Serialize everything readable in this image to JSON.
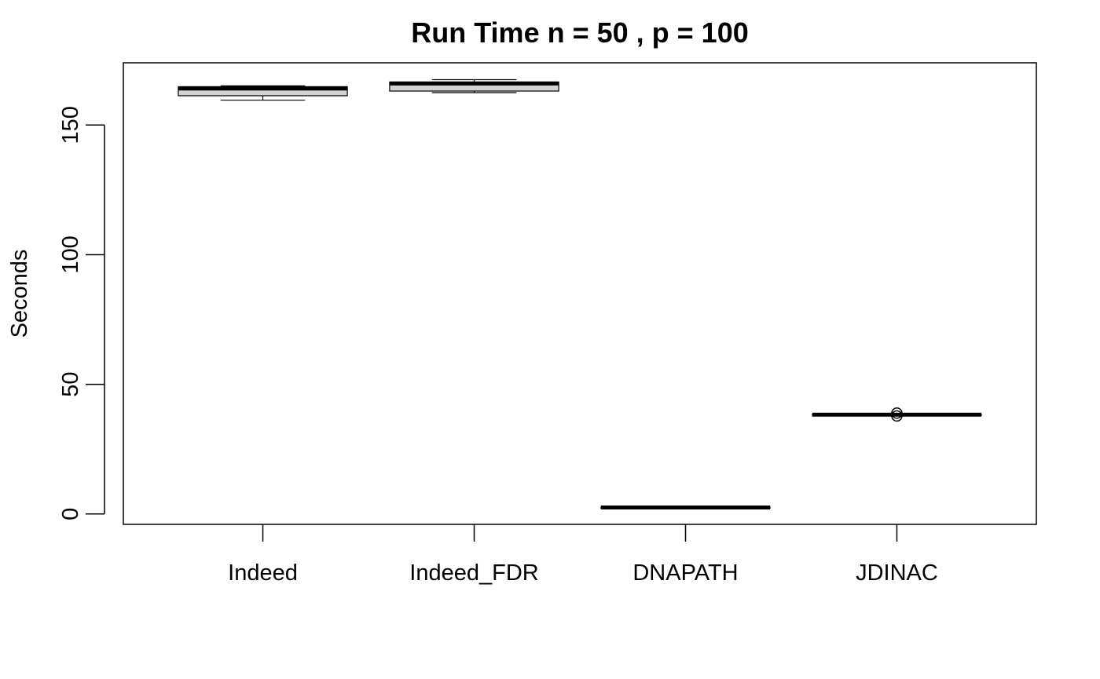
{
  "chart_data": {
    "type": "boxplot",
    "title": "Run Time n = 50 , p = 100",
    "xlabel": "",
    "ylabel": "Seconds",
    "ylim": [
      -4,
      174
    ],
    "yticks": [
      0,
      50,
      100,
      150
    ],
    "categories": [
      "Indeed",
      "Indeed_FDR",
      "DNAPATH",
      "JDINAC"
    ],
    "boxes": [
      {
        "category": "Indeed",
        "min": 159.6,
        "q1": 161.3,
        "median": 164.1,
        "q3": 164.8,
        "max": 165.1,
        "outliers": []
      },
      {
        "category": "Indeed_FDR",
        "min": 162.5,
        "q1": 163.1,
        "median": 166.0,
        "q3": 166.6,
        "max": 167.5,
        "outliers": []
      },
      {
        "category": "DNAPATH",
        "min": 2.3,
        "q1": 2.4,
        "median": 2.5,
        "q3": 2.6,
        "max": 2.7,
        "outliers": []
      },
      {
        "category": "JDINAC",
        "min": 38.0,
        "q1": 38.2,
        "median": 38.3,
        "q3": 38.4,
        "max": 38.5,
        "outliers": [
          37.8,
          38.9
        ]
      }
    ],
    "colors": {
      "box_fill": "#d3d3d3",
      "line": "#000000",
      "background": "#ffffff"
    },
    "grid": false,
    "legend": "none"
  }
}
